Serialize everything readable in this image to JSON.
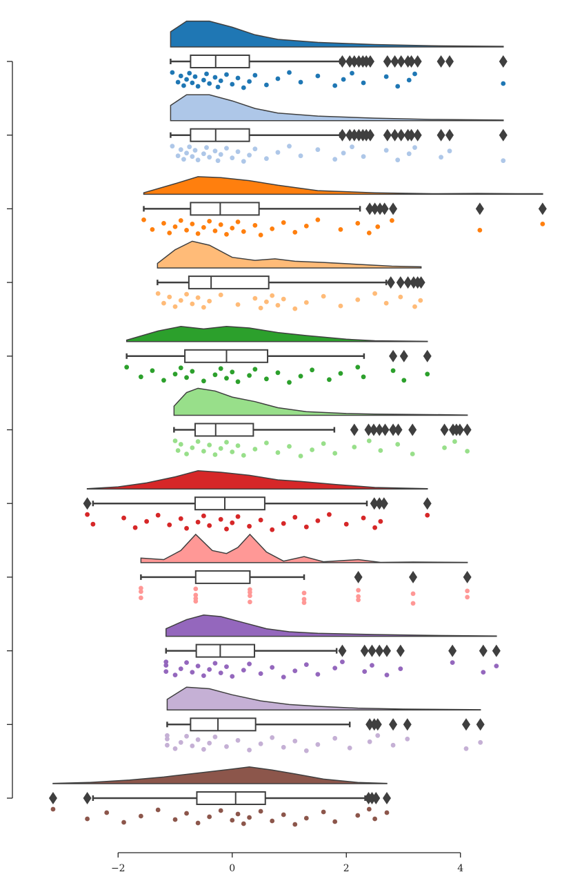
{
  "chart_data": {
    "type": "raincloud",
    "categories": [
      null,
      null,
      null,
      null,
      null,
      null,
      null,
      null,
      null,
      null,
      null
    ],
    "xlim": [
      -4.07,
      5.78
    ],
    "xticks": [
      {
        "value": -2,
        "label": "−2"
      },
      0,
      2,
      4
    ],
    "series": [
      {
        "color": "#1f77b4",
        "whislo": -1.08,
        "q1": -0.73,
        "med": -0.29,
        "q3": 0.3,
        "whishi": 1.89,
        "fliers": [
          1.93,
          2.06,
          2.14,
          2.22,
          2.29,
          2.35,
          2.42,
          2.72,
          2.85,
          2.96,
          3.08,
          3.14,
          3.25,
          3.66,
          3.81,
          4.75
        ],
        "density_x": [
          -1.08,
          -0.8,
          -0.4,
          0,
          0.4,
          0.8,
          1.5,
          2.5,
          3.5,
          4.75
        ],
        "density": [
          0.5,
          0.85,
          0.85,
          0.65,
          0.4,
          0.25,
          0.15,
          0.08,
          0.04,
          0.02
        ],
        "points": [
          -1.05,
          -0.95,
          -0.9,
          -0.85,
          -0.8,
          -0.75,
          -0.7,
          -0.65,
          -0.6,
          -0.5,
          -0.45,
          -0.4,
          -0.3,
          -0.25,
          -0.2,
          -0.1,
          0,
          0.1,
          0.2,
          0.3,
          0.4,
          0.6,
          0.8,
          1.0,
          1.2,
          1.5,
          1.8,
          1.95,
          2.1,
          2.3,
          2.7,
          2.9,
          3.1,
          3.2,
          4.75
        ]
      },
      {
        "color": "#aec7e8",
        "whislo": -1.08,
        "q1": -0.73,
        "med": -0.29,
        "q3": 0.3,
        "whishi": 1.89,
        "fliers": [
          1.93,
          2.06,
          2.14,
          2.22,
          2.29,
          2.35,
          2.42,
          2.72,
          2.85,
          2.96,
          3.08,
          3.14,
          3.25,
          3.66,
          3.81,
          4.75
        ],
        "density_x": [
          -1.08,
          -0.8,
          -0.4,
          0,
          0.4,
          0.8,
          1.5,
          2.5,
          3.5,
          4.75
        ],
        "density": [
          0.5,
          0.85,
          0.85,
          0.65,
          0.4,
          0.25,
          0.15,
          0.08,
          0.04,
          0.02
        ],
        "points": [
          -1.05,
          -0.95,
          -0.9,
          -0.85,
          -0.8,
          -0.75,
          -0.7,
          -0.65,
          -0.6,
          -0.5,
          -0.45,
          -0.4,
          -0.3,
          -0.25,
          -0.2,
          -0.1,
          0,
          0.1,
          0.2,
          0.3,
          0.4,
          0.6,
          0.8,
          1.0,
          1.2,
          1.5,
          1.8,
          1.95,
          2.1,
          2.3,
          2.7,
          2.9,
          3.1,
          3.2,
          3.66,
          3.81,
          4.75
        ]
      },
      {
        "color": "#ff7f0e",
        "whislo": -1.55,
        "q1": -0.73,
        "med": -0.21,
        "q3": 0.47,
        "whishi": 2.24,
        "fliers": [
          2.41,
          2.5,
          2.59,
          2.67,
          2.82,
          4.34,
          5.44
        ],
        "density_x": [
          -1.55,
          -1.0,
          -0.6,
          -0.2,
          0.3,
          0.8,
          1.5,
          2.5,
          3.5,
          4.3,
          5.0,
          5.44
        ],
        "density": [
          0.05,
          0.35,
          0.58,
          0.55,
          0.45,
          0.3,
          0.12,
          0.05,
          0.02,
          0.03,
          0.02,
          0.02
        ],
        "points": [
          -1.55,
          -1.4,
          -1.2,
          -1.1,
          -1.0,
          -0.9,
          -0.8,
          -0.7,
          -0.6,
          -0.5,
          -0.4,
          -0.3,
          -0.2,
          -0.1,
          0,
          0.1,
          0.2,
          0.4,
          0.5,
          0.7,
          0.9,
          1.1,
          1.3,
          1.5,
          1.9,
          2.2,
          2.4,
          2.55,
          2.8,
          4.34,
          5.44
        ]
      },
      {
        "color": "#ffbb78",
        "whislo": -1.31,
        "q1": -0.76,
        "med": -0.37,
        "q3": 0.64,
        "whishi": 2.7,
        "fliers": [
          2.78,
          2.95,
          3.08,
          3.18,
          3.25,
          3.31
        ],
        "density_x": [
          -1.31,
          -1.0,
          -0.7,
          -0.4,
          0,
          0.4,
          0.75,
          1.1,
          1.6,
          2.2,
          2.8,
          3.31
        ],
        "density": [
          0.15,
          0.6,
          0.88,
          0.75,
          0.35,
          0.25,
          0.3,
          0.22,
          0.18,
          0.12,
          0.06,
          0.04
        ],
        "points": [
          -1.3,
          -1.2,
          -1.1,
          -1.0,
          -0.9,
          -0.8,
          -0.7,
          -0.6,
          -0.5,
          -0.4,
          -0.2,
          0.1,
          0.4,
          0.5,
          0.6,
          0.7,
          0.8,
          0.9,
          1.1,
          1.3,
          1.6,
          1.9,
          2.2,
          2.5,
          2.7,
          2.95,
          3.2,
          3.3
        ]
      },
      {
        "color": "#2ca02c",
        "whislo": -1.85,
        "q1": -0.83,
        "med": -0.1,
        "q3": 0.62,
        "whishi": 2.31,
        "fliers": [
          2.82,
          3.01,
          3.42
        ],
        "density_x": [
          -1.85,
          -1.3,
          -0.9,
          -0.5,
          -0.1,
          0.3,
          0.8,
          1.3,
          2.0,
          2.5,
          3.42
        ],
        "density": [
          0.05,
          0.35,
          0.5,
          0.42,
          0.5,
          0.45,
          0.3,
          0.2,
          0.08,
          0.03,
          0.01
        ],
        "points": [
          -1.85,
          -1.6,
          -1.4,
          -1.2,
          -1.0,
          -0.9,
          -0.8,
          -0.7,
          -0.5,
          -0.3,
          -0.2,
          -0.1,
          0,
          0.1,
          0.3,
          0.4,
          0.6,
          0.8,
          1.0,
          1.2,
          1.4,
          1.7,
          1.9,
          2.2,
          2.3,
          2.82,
          3.01,
          3.42
        ]
      },
      {
        "color": "#98df8a",
        "whislo": -1.02,
        "q1": -0.65,
        "med": -0.29,
        "q3": 0.37,
        "whishi": 1.79,
        "fliers": [
          2.14,
          2.39,
          2.48,
          2.58,
          2.68,
          2.82,
          2.91,
          3.16,
          3.72,
          3.87,
          3.93,
          3.99,
          4.12
        ],
        "density_x": [
          -1.02,
          -0.8,
          -0.6,
          -0.3,
          0,
          0.4,
          0.8,
          1.3,
          2.0,
          2.5,
          3.0,
          3.7,
          4.12
        ],
        "density": [
          0.3,
          0.75,
          0.89,
          0.8,
          0.6,
          0.45,
          0.25,
          0.12,
          0.06,
          0.04,
          0.03,
          0.02,
          0.01
        ],
        "points": [
          -1.0,
          -0.95,
          -0.9,
          -0.8,
          -0.7,
          -0.6,
          -0.5,
          -0.4,
          -0.3,
          -0.2,
          -0.1,
          0,
          0.1,
          0.2,
          0.4,
          0.6,
          0.8,
          1.0,
          1.2,
          1.4,
          1.6,
          1.8,
          2.14,
          2.4,
          2.6,
          2.9,
          3.16,
          3.72,
          3.9,
          4.12
        ]
      },
      {
        "color": "#d62728",
        "whislo": -2.44,
        "q1": -0.65,
        "med": -0.13,
        "q3": 0.57,
        "whishi": 2.36,
        "fliers": [
          -2.54,
          2.49,
          2.58,
          2.66,
          3.42
        ],
        "density_x": [
          -2.54,
          -2.0,
          -1.5,
          -1.0,
          -0.6,
          -0.2,
          0.3,
          0.8,
          1.2,
          1.8,
          2.5,
          3.42
        ],
        "density": [
          0.01,
          0.07,
          0.2,
          0.4,
          0.6,
          0.55,
          0.45,
          0.3,
          0.25,
          0.15,
          0.05,
          0.01
        ],
        "points": [
          -2.54,
          -2.44,
          -1.9,
          -1.7,
          -1.5,
          -1.3,
          -1.1,
          -0.9,
          -0.8,
          -0.6,
          -0.5,
          -0.4,
          -0.2,
          -0.1,
          0,
          0.1,
          0.3,
          0.5,
          0.7,
          0.9,
          1.1,
          1.3,
          1.5,
          1.7,
          2.0,
          2.3,
          2.5,
          2.6,
          3.42
        ]
      },
      {
        "color": "#ff9896",
        "whislo": -1.6,
        "q1": -0.64,
        "med": 0.31,
        "q3": 0.31,
        "whishi": 1.26,
        "fliers": [
          2.21,
          3.17,
          4.12
        ],
        "density_x": [
          -1.6,
          -1.2,
          -0.9,
          -0.64,
          -0.35,
          -0.1,
          0.1,
          0.31,
          0.6,
          0.9,
          1.26,
          1.6,
          2.21,
          2.6,
          3.17,
          4.12
        ],
        "density": [
          0.15,
          0.1,
          0.4,
          0.93,
          0.4,
          0.3,
          0.5,
          0.93,
          0.35,
          0.05,
          0.2,
          0.03,
          0.1,
          0.01,
          0.02,
          0.01
        ],
        "points": [
          -1.6,
          -1.6,
          -1.6,
          -0.64,
          -0.64,
          -0.64,
          -0.64,
          0.31,
          0.31,
          0.31,
          0.31,
          1.26,
          1.26,
          1.26,
          2.21,
          2.21,
          2.21,
          3.17,
          3.17,
          4.12,
          4.12
        ]
      },
      {
        "color": "#9467bd",
        "whislo": -1.16,
        "q1": -0.63,
        "med": -0.21,
        "q3": 0.39,
        "whishi": 1.83,
        "fliers": [
          1.93,
          2.32,
          2.45,
          2.58,
          2.71,
          2.95,
          3.86,
          4.4,
          4.63
        ],
        "density_x": [
          -1.16,
          -0.8,
          -0.5,
          -0.2,
          0.2,
          0.6,
          1.0,
          1.5,
          2.5,
          3.5,
          4.63
        ],
        "density": [
          0.25,
          0.55,
          0.7,
          0.65,
          0.45,
          0.25,
          0.15,
          0.1,
          0.06,
          0.03,
          0.01
        ],
        "points": [
          -1.16,
          -1.16,
          -1.16,
          -1.0,
          -0.9,
          -0.8,
          -0.7,
          -0.6,
          -0.5,
          -0.4,
          -0.3,
          -0.2,
          -0.1,
          0,
          0.2,
          0.3,
          0.5,
          0.7,
          0.9,
          1.1,
          1.3,
          1.5,
          1.8,
          1.93,
          2.32,
          2.45,
          2.71,
          2.95,
          3.86,
          4.4,
          4.63
        ]
      },
      {
        "color": "#c5b0d5",
        "whislo": -1.14,
        "q1": -0.73,
        "med": -0.25,
        "q3": 0.41,
        "whishi": 2.06,
        "fliers": [
          2.41,
          2.49,
          2.55,
          2.82,
          3.07,
          4.1,
          4.35
        ],
        "density_x": [
          -1.14,
          -0.8,
          -0.4,
          0,
          0.5,
          1.0,
          1.5,
          2.2,
          3.0,
          4.35
        ],
        "density": [
          0.35,
          0.75,
          0.7,
          0.5,
          0.3,
          0.18,
          0.12,
          0.06,
          0.03,
          0.01
        ],
        "points": [
          -1.14,
          -1.14,
          -1.14,
          -1.0,
          -0.9,
          -0.8,
          -0.7,
          -0.6,
          -0.5,
          -0.4,
          -0.3,
          -0.1,
          0.1,
          0.3,
          0.5,
          0.7,
          0.9,
          1.1,
          1.3,
          1.5,
          1.8,
          2.06,
          2.41,
          2.55,
          2.82,
          3.07,
          4.1,
          4.35
        ]
      },
      {
        "color": "#8c564b",
        "whislo": -2.44,
        "q1": -0.62,
        "med": 0.06,
        "q3": 0.58,
        "whishi": 2.33,
        "fliers": [
          -3.14,
          -2.54,
          2.39,
          2.45,
          2.52,
          2.71
        ],
        "density_x": [
          -3.14,
          -2.5,
          -1.8,
          -1.2,
          -0.6,
          0,
          0.3,
          0.7,
          1.1,
          1.6,
          2.2,
          2.71
        ],
        "density": [
          0.01,
          0.04,
          0.12,
          0.22,
          0.35,
          0.48,
          0.55,
          0.45,
          0.32,
          0.15,
          0.04,
          0.01
        ],
        "points": [
          -3.14,
          -2.54,
          -2.2,
          -1.9,
          -1.6,
          -1.3,
          -1.0,
          -0.8,
          -0.6,
          -0.4,
          -0.2,
          0,
          0.1,
          0.2,
          0.3,
          0.5,
          0.7,
          0.9,
          1.1,
          1.3,
          1.6,
          1.8,
          2.2,
          2.4,
          2.5,
          2.71
        ]
      }
    ]
  }
}
